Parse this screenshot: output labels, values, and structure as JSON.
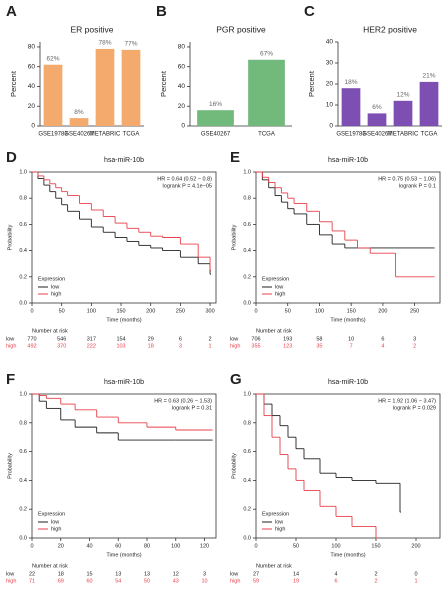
{
  "chart_data": [
    {
      "type": "bar",
      "panel": "A",
      "title": "ER positive",
      "ylabel": "Percent",
      "categories": [
        "GSE19783",
        "GSE40267",
        "METABRIC",
        "TCGA"
      ],
      "values": [
        62,
        8,
        78,
        77
      ],
      "value_labels": [
        "62%",
        "8%",
        "78%",
        "77%"
      ],
      "color": "#f4aa6c",
      "ylim": [
        0,
        85
      ],
      "yticks": [
        0,
        20,
        40,
        60,
        80
      ]
    },
    {
      "type": "bar",
      "panel": "B",
      "title": "PGR positive",
      "ylabel": "Percent",
      "categories": [
        "GSE40267",
        "TCGA"
      ],
      "values": [
        16,
        67
      ],
      "value_labels": [
        "16%",
        "67%"
      ],
      "color": "#72b97c",
      "ylim": [
        0,
        85
      ],
      "yticks": [
        0,
        20,
        40,
        60,
        80
      ]
    },
    {
      "type": "bar",
      "panel": "C",
      "title": "HER2 positive",
      "ylabel": "Percent",
      "categories": [
        "GSE19783",
        "GSE40267",
        "METABRIC",
        "TCGA"
      ],
      "values": [
        18,
        6,
        12,
        21
      ],
      "value_labels": [
        "18%",
        "6%",
        "12%",
        "21%"
      ],
      "color": "#7d4fb3",
      "ylim": [
        0,
        40
      ],
      "yticks": [
        0,
        10,
        20,
        30,
        40
      ]
    },
    {
      "type": "survival",
      "panel": "D",
      "title": "hsa-miR-10b",
      "annotations": [
        "HR = 0.64 (0.52 − 0.8)",
        "logrank P = 4.1e−05"
      ],
      "xlabel": "Time (months)",
      "ylabel": "Probability",
      "legend_title": "Expression",
      "risk_title": "Number at risk",
      "xlim": [
        0,
        310
      ],
      "xticks": [
        0,
        50,
        100,
        150,
        200,
        250,
        300
      ],
      "ylim": [
        0,
        1
      ],
      "yticks": [
        {
          "value": 0,
          "label": "0.0"
        },
        0.2,
        0.4,
        0.6,
        0.8,
        {
          "value": 1,
          "label": "1.0"
        }
      ],
      "series": [
        {
          "name": "low",
          "color": "#222222",
          "x": [
            0,
            10,
            20,
            30,
            40,
            50,
            60,
            80,
            100,
            120,
            140,
            160,
            180,
            200,
            220,
            250,
            280,
            300
          ],
          "values": [
            1,
            0.95,
            0.9,
            0.85,
            0.8,
            0.75,
            0.7,
            0.64,
            0.58,
            0.54,
            0.5,
            0.47,
            0.44,
            0.42,
            0.4,
            0.35,
            0.3,
            0.22
          ],
          "at_risk": [
            770,
            546,
            317,
            154,
            29,
            6,
            2
          ]
        },
        {
          "name": "high",
          "color": "#e8404a",
          "x": [
            0,
            10,
            20,
            30,
            40,
            50,
            60,
            80,
            100,
            120,
            140,
            160,
            180,
            200,
            220,
            250,
            280,
            300
          ],
          "values": [
            1,
            0.97,
            0.94,
            0.91,
            0.88,
            0.85,
            0.82,
            0.76,
            0.71,
            0.66,
            0.61,
            0.57,
            0.54,
            0.51,
            0.5,
            0.45,
            0.35,
            0.25
          ],
          "at_risk": [
            492,
            370,
            222,
            103,
            18,
            3,
            1
          ]
        }
      ]
    },
    {
      "type": "survival",
      "panel": "E",
      "title": "hsa-miR-10b",
      "annotations": [
        "HR = 0.75 (0.53 − 1.06)",
        "logrank P = 0.1"
      ],
      "xlabel": "Time (months)",
      "ylabel": "Probability",
      "legend_title": "Expression",
      "risk_title": "Number at risk",
      "xlim": [
        0,
        290
      ],
      "xticks": [
        0,
        50,
        100,
        150,
        200,
        250
      ],
      "ylim": [
        0,
        1
      ],
      "yticks": [
        {
          "value": 0,
          "label": "0.0"
        },
        0.2,
        0.4,
        0.6,
        0.8,
        {
          "value": 1,
          "label": "1.0"
        }
      ],
      "series": [
        {
          "name": "low",
          "color": "#222222",
          "x": [
            0,
            10,
            20,
            30,
            40,
            50,
            60,
            80,
            100,
            120,
            140,
            180,
            220,
            280
          ],
          "values": [
            1,
            0.94,
            0.88,
            0.82,
            0.77,
            0.72,
            0.68,
            0.6,
            0.52,
            0.45,
            0.42,
            0.42,
            0.42,
            0.42
          ],
          "at_risk": [
            706,
            193,
            58,
            10,
            6,
            3
          ]
        },
        {
          "name": "high",
          "color": "#e8404a",
          "x": [
            0,
            10,
            20,
            30,
            40,
            50,
            60,
            80,
            100,
            120,
            140,
            160,
            180,
            220,
            280
          ],
          "values": [
            1,
            0.96,
            0.92,
            0.88,
            0.84,
            0.8,
            0.76,
            0.7,
            0.62,
            0.55,
            0.48,
            0.42,
            0.38,
            0.2,
            0.2
          ],
          "at_risk": [
            355,
            123,
            35,
            7,
            4,
            2
          ]
        }
      ]
    },
    {
      "type": "survival",
      "panel": "F",
      "title": "hsa-miR-10b",
      "annotations": [
        "HR = 0.63 (0.26 − 1.53)",
        "logrank P = 0.31"
      ],
      "xlabel": "Time (months)",
      "ylabel": "Probability",
      "legend_title": "Expression",
      "risk_title": "Number at risk",
      "xlim": [
        0,
        128
      ],
      "xticks": [
        0,
        20,
        40,
        60,
        80,
        100,
        120
      ],
      "ylim": [
        0,
        1
      ],
      "yticks": [
        {
          "value": 0,
          "label": "0.0"
        },
        0.2,
        0.4,
        0.6,
        0.8,
        {
          "value": 1,
          "label": "1.0"
        }
      ],
      "series": [
        {
          "name": "low",
          "color": "#222222",
          "x": [
            0,
            5,
            10,
            20,
            30,
            45,
            60,
            80,
            100,
            125
          ],
          "values": [
            1,
            0.95,
            0.9,
            0.82,
            0.77,
            0.73,
            0.68,
            0.68,
            0.68,
            0.68
          ],
          "at_risk": [
            22,
            18,
            15,
            13,
            13,
            12,
            3
          ]
        },
        {
          "name": "high",
          "color": "#e8404a",
          "x": [
            0,
            5,
            10,
            20,
            30,
            45,
            60,
            80,
            100,
            125
          ],
          "values": [
            1,
            0.99,
            0.97,
            0.93,
            0.89,
            0.84,
            0.8,
            0.77,
            0.75,
            0.75
          ],
          "at_risk": [
            71,
            69,
            60,
            54,
            50,
            43,
            10
          ]
        }
      ]
    },
    {
      "type": "survival",
      "panel": "G",
      "title": "hsa-miR-10b",
      "annotations": [
        "HR = 1.92 (1.06 − 3.47)",
        "logrank P = 0.029"
      ],
      "xlabel": "Time (months)",
      "ylabel": "Probability",
      "legend_title": "Expression",
      "risk_title": "Number at risk",
      "xlim": [
        0,
        230
      ],
      "xticks": [
        0,
        50,
        100,
        150,
        200
      ],
      "ylim": [
        0,
        1
      ],
      "yticks": [
        {
          "value": 0,
          "label": "0.0"
        },
        0.2,
        0.4,
        0.6,
        0.8,
        {
          "value": 1,
          "label": "1.0"
        }
      ],
      "series": [
        {
          "name": "low",
          "color": "#222222",
          "x": [
            0,
            10,
            20,
            30,
            40,
            50,
            60,
            80,
            100,
            120,
            150,
            180
          ],
          "values": [
            1,
            0.93,
            0.85,
            0.78,
            0.7,
            0.62,
            0.55,
            0.45,
            0.42,
            0.4,
            0.38,
            0.18
          ],
          "at_risk": [
            27,
            14,
            4,
            2,
            0
          ]
        },
        {
          "name": "high",
          "color": "#e8404a",
          "x": [
            0,
            10,
            20,
            30,
            40,
            50,
            60,
            80,
            100,
            120,
            150
          ],
          "values": [
            1,
            0.85,
            0.7,
            0.58,
            0.48,
            0.4,
            0.33,
            0.22,
            0.15,
            0.08,
            0
          ],
          "at_risk": [
            59,
            19,
            6,
            2,
            1
          ]
        }
      ]
    }
  ]
}
